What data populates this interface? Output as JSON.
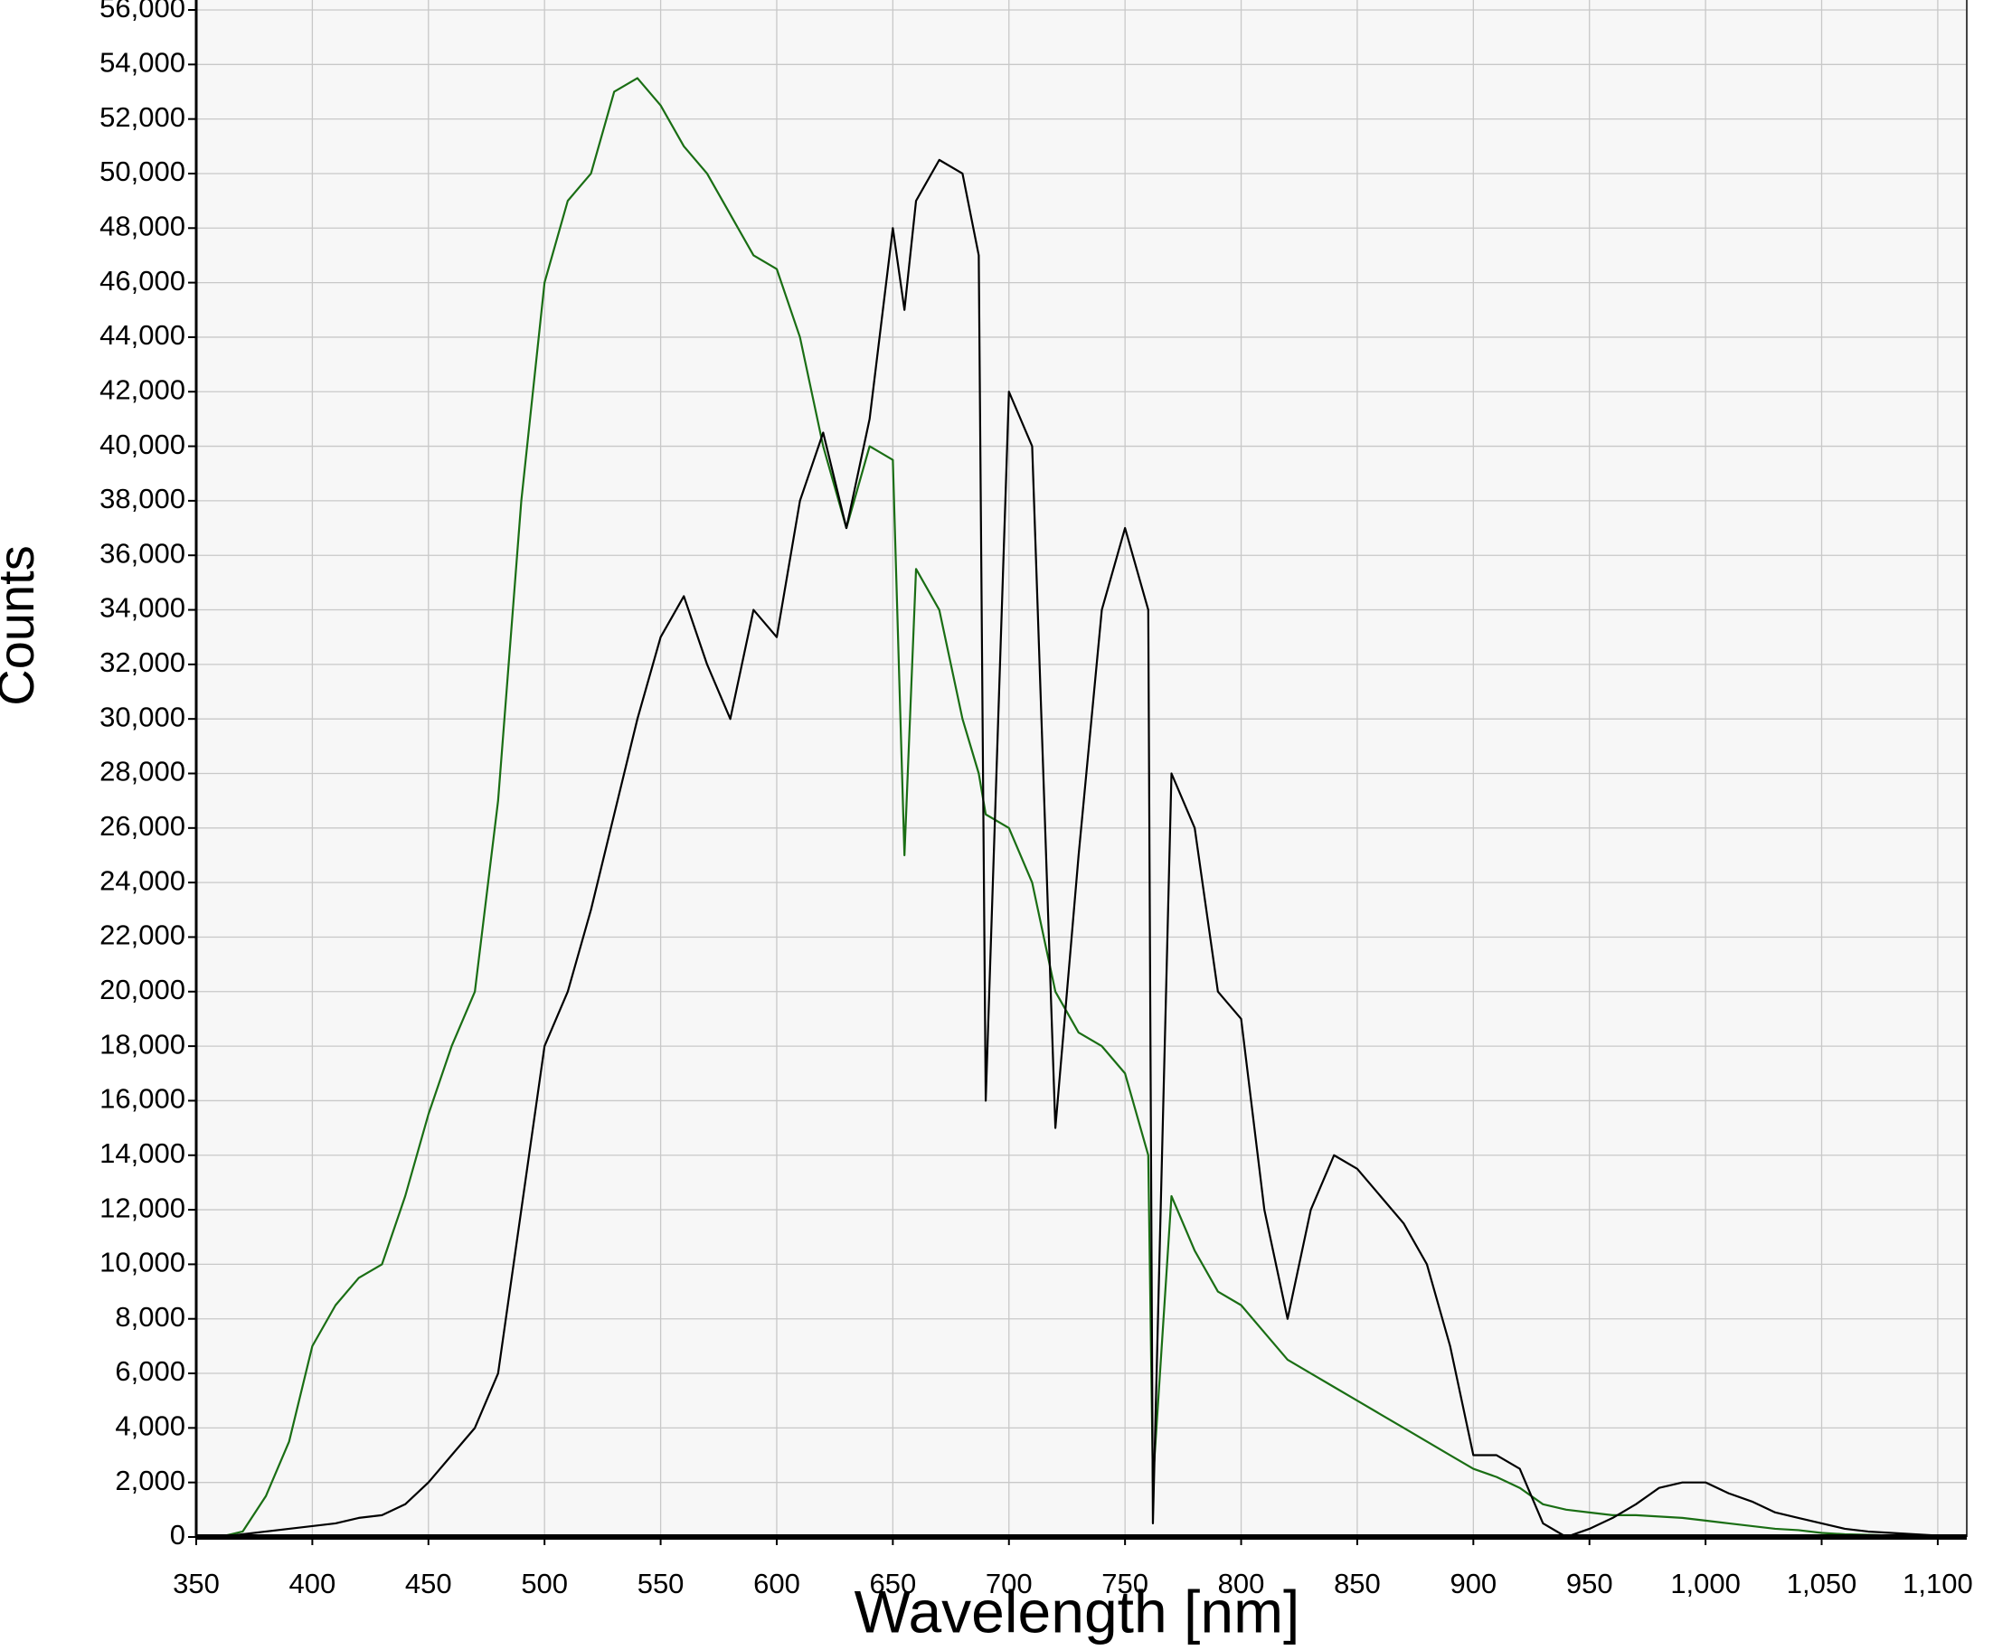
{
  "chart_data": {
    "type": "line",
    "x_label": "Wavelength [nm]",
    "y_label": "Counts",
    "x": [
      350,
      360,
      370,
      380,
      390,
      400,
      410,
      420,
      430,
      440,
      450,
      460,
      470,
      480,
      490,
      500,
      510,
      520,
      530,
      540,
      550,
      560,
      570,
      580,
      590,
      600,
      610,
      620,
      630,
      640,
      650,
      655,
      660,
      670,
      680,
      687,
      690,
      700,
      710,
      720,
      730,
      740,
      750,
      760,
      762,
      770,
      780,
      790,
      800,
      810,
      820,
      830,
      840,
      850,
      860,
      870,
      880,
      890,
      900,
      910,
      920,
      930,
      940,
      950,
      960,
      970,
      980,
      990,
      1000,
      1010,
      1020,
      1030,
      1040,
      1050,
      1060,
      1070,
      1080,
      1090,
      1100
    ],
    "series": [
      {
        "color": "#1a6e14",
        "values": [
          0,
          0,
          200,
          1500,
          3500,
          7000,
          8500,
          9500,
          10000,
          12500,
          15500,
          18000,
          20000,
          27000,
          38000,
          46000,
          49000,
          50000,
          53000,
          53500,
          52500,
          51000,
          50000,
          48500,
          47000,
          46500,
          44000,
          40000,
          37000,
          40000,
          39500,
          25000,
          35500,
          34000,
          30000,
          28000,
          26500,
          26000,
          24000,
          20000,
          18500,
          18000,
          17000,
          14000,
          2000,
          12500,
          10500,
          9000,
          8500,
          7500,
          6500,
          6000,
          5500,
          5000,
          4500,
          4000,
          3500,
          3000,
          2500,
          2200,
          1800,
          1200,
          1000,
          900,
          800,
          800,
          750,
          700,
          600,
          500,
          400,
          300,
          250,
          150,
          100,
          80,
          50,
          0,
          0
        ]
      },
      {
        "color": "#000000",
        "values": [
          0,
          0,
          100,
          200,
          300,
          400,
          500,
          700,
          800,
          1200,
          2000,
          3000,
          4000,
          6000,
          12000,
          18000,
          20000,
          23000,
          26500,
          30000,
          33000,
          34500,
          32000,
          30000,
          34000,
          33000,
          38000,
          40500,
          37000,
          41000,
          48000,
          45000,
          49000,
          50500,
          50000,
          47000,
          16000,
          42000,
          40000,
          15000,
          25000,
          34000,
          37000,
          34000,
          500,
          28000,
          26000,
          20000,
          19000,
          12000,
          8000,
          12000,
          14000,
          13500,
          12500,
          11500,
          10000,
          7000,
          3000,
          3000,
          2500,
          500,
          0,
          300,
          700,
          1200,
          1800,
          2000,
          2000,
          1600,
          1300,
          900,
          700,
          500,
          300,
          200,
          150,
          100,
          50
        ]
      }
    ],
    "xlim": [
      350,
      1112.5
    ],
    "ylim": [
      0,
      56000
    ],
    "xticks": [
      350,
      400,
      450,
      500,
      550,
      600,
      650,
      700,
      750,
      800,
      850,
      900,
      950,
      {
        "value": 1000,
        "label": "1,000"
      },
      {
        "value": 1050,
        "label": "1,050"
      },
      {
        "value": 1100,
        "label": "1,100"
      }
    ],
    "yticks": [
      0,
      {
        "value": 2000,
        "label": "2,000"
      },
      {
        "value": 4000,
        "label": "4,000"
      },
      {
        "value": 6000,
        "label": "6,000"
      },
      {
        "value": 8000,
        "label": "8,000"
      },
      {
        "value": 10000,
        "label": "10,000"
      },
      {
        "value": 12000,
        "label": "12,000"
      },
      {
        "value": 14000,
        "label": "14,000"
      },
      {
        "value": 16000,
        "label": "16,000"
      },
      {
        "value": 18000,
        "label": "18,000"
      },
      {
        "value": 20000,
        "label": "20,000"
      },
      {
        "value": 22000,
        "label": "22,000"
      },
      {
        "value": 24000,
        "label": "24,000"
      },
      {
        "value": 26000,
        "label": "26,000"
      },
      {
        "value": 28000,
        "label": "28,000"
      },
      {
        "value": 30000,
        "label": "30,000"
      },
      {
        "value": 32000,
        "label": "32,000"
      },
      {
        "value": 34000,
        "label": "34,000"
      },
      {
        "value": 36000,
        "label": "36,000"
      },
      {
        "value": 38000,
        "label": "38,000"
      },
      {
        "value": 40000,
        "label": "40,000"
      },
      {
        "value": 42000,
        "label": "42,000"
      },
      {
        "value": 44000,
        "label": "44,000"
      },
      {
        "value": 46000,
        "label": "46,000"
      },
      {
        "value": 48000,
        "label": "48,000"
      },
      {
        "value": 50000,
        "label": "50,000"
      },
      {
        "value": 52000,
        "label": "52,000"
      },
      {
        "value": 54000,
        "label": "54,000"
      },
      {
        "value": 56000,
        "label": "56,000"
      }
    ],
    "grid": true
  }
}
